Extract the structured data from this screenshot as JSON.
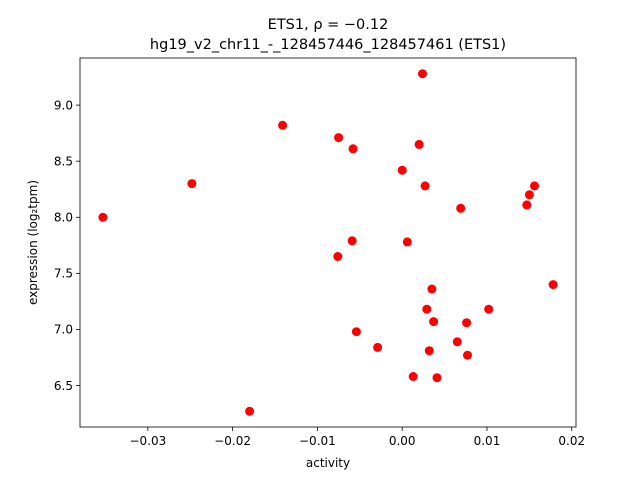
{
  "chart_data": {
    "type": "scatter",
    "title_line1": "ETS1, ρ = −0.12",
    "title_line2": "hg19_v2_chr11_-_128457446_128457461 (ETS1)",
    "xlabel": "activity",
    "ylabel": "expression (log₂tpm)",
    "xlim": [
      -0.038,
      0.0205
    ],
    "ylim": [
      6.13,
      9.42
    ],
    "xticks": [
      -0.03,
      -0.02,
      -0.01,
      0.0,
      0.01,
      0.02
    ],
    "xtick_labels": [
      "−0.03",
      "−0.02",
      "−0.01",
      "0.00",
      "0.01",
      "0.02"
    ],
    "yticks": [
      6.5,
      7.0,
      7.5,
      8.0,
      8.5,
      9.0
    ],
    "ytick_labels": [
      "6.5",
      "7.0",
      "7.5",
      "8.0",
      "8.5",
      "9.0"
    ],
    "grid": false,
    "marker_color": "#ff0000",
    "series": [
      {
        "points": [
          {
            "x": -0.0353,
            "y": 8.0
          },
          {
            "x": -0.0248,
            "y": 8.3
          },
          {
            "x": -0.018,
            "y": 6.27
          },
          {
            "x": -0.0141,
            "y": 8.82
          },
          {
            "x": -0.0075,
            "y": 8.71
          },
          {
            "x": -0.0058,
            "y": 8.61
          },
          {
            "x": -0.0076,
            "y": 7.65
          },
          {
            "x": -0.0059,
            "y": 7.79
          },
          {
            "x": -0.0054,
            "y": 6.98
          },
          {
            "x": -0.0029,
            "y": 6.84
          },
          {
            "x": 0.0,
            "y": 8.42
          },
          {
            "x": 0.002,
            "y": 8.65
          },
          {
            "x": 0.0024,
            "y": 9.28
          },
          {
            "x": 0.0027,
            "y": 8.28
          },
          {
            "x": 0.0006,
            "y": 7.78
          },
          {
            "x": 0.0013,
            "y": 6.58
          },
          {
            "x": 0.0029,
            "y": 7.18
          },
          {
            "x": 0.0032,
            "y": 6.81
          },
          {
            "x": 0.0035,
            "y": 7.36
          },
          {
            "x": 0.0037,
            "y": 7.07
          },
          {
            "x": 0.0041,
            "y": 6.57
          },
          {
            "x": 0.0065,
            "y": 6.89
          },
          {
            "x": 0.0069,
            "y": 8.08
          },
          {
            "x": 0.0076,
            "y": 7.06
          },
          {
            "x": 0.0077,
            "y": 6.77
          },
          {
            "x": 0.0102,
            "y": 7.18
          },
          {
            "x": 0.0147,
            "y": 8.11
          },
          {
            "x": 0.015,
            "y": 8.2
          },
          {
            "x": 0.0156,
            "y": 8.28
          },
          {
            "x": 0.0178,
            "y": 7.4
          }
        ]
      }
    ]
  }
}
